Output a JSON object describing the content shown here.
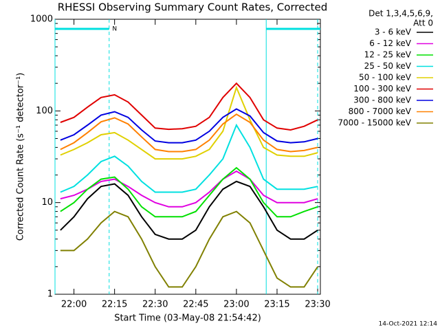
{
  "chart_data": {
    "type": "line",
    "title": "RHESSI Observing Summary Count Rates, Corrected",
    "x_label": "Start Time (03-May-08 21:54:42)",
    "y_label": "Corrected Count Rate (s⁻¹ detector⁻¹)",
    "footer": "14-Oct-2021 12:14",
    "legend_title": [
      "Det 1,3,4,5,6,9,",
      "Att 0"
    ],
    "log_y": true,
    "ylim": [
      1,
      1000
    ],
    "yticks": [
      1,
      10,
      100,
      1000
    ],
    "xlim": [
      "21:53",
      "23:31"
    ],
    "xticks": [
      "22:00",
      "22:15",
      "22:30",
      "22:45",
      "23:00",
      "23:15",
      "23:30"
    ],
    "night_bars": [
      [
        "21:53",
        "22:13"
      ],
      [
        "23:11",
        "23:31"
      ]
    ],
    "vlines": [
      {
        "x": "21:53",
        "style": "solid"
      },
      {
        "x": "22:13",
        "style": "dashed"
      },
      {
        "x": "23:11",
        "style": "solid"
      },
      {
        "x": "23:30",
        "style": "dashed"
      }
    ],
    "annotation": {
      "text": "N",
      "x": "22:13"
    },
    "x": [
      "21:55",
      "22:00",
      "22:05",
      "22:10",
      "22:15",
      "22:20",
      "22:25",
      "22:30",
      "22:35",
      "22:40",
      "22:45",
      "22:50",
      "22:55",
      "23:00",
      "23:05",
      "23:10",
      "23:15",
      "23:20",
      "23:25",
      "23:30"
    ],
    "series": [
      {
        "name": "3 - 6 keV",
        "color": "#000000",
        "values": [
          5,
          7,
          11,
          15,
          16,
          12,
          7,
          4.5,
          4,
          4,
          5,
          9,
          14,
          17,
          15,
          9,
          5,
          4,
          4,
          5
        ]
      },
      {
        "name": "6 - 12 keV",
        "color": "#e000e0",
        "values": [
          11,
          12,
          14,
          17,
          18,
          15,
          12,
          10,
          9,
          9,
          10,
          13,
          18,
          22,
          18,
          12,
          10,
          10,
          10,
          11
        ]
      },
      {
        "name": "12 - 25 keV",
        "color": "#00e000",
        "values": [
          8,
          10,
          14,
          18,
          19,
          14,
          9,
          7,
          7,
          7,
          8,
          12,
          18,
          24,
          18,
          10,
          7,
          7,
          8,
          9
        ]
      },
      {
        "name": "25 - 50 keV",
        "color": "#00e0e0",
        "values": [
          13,
          15,
          20,
          28,
          32,
          25,
          17,
          13,
          13,
          13,
          14,
          20,
          30,
          70,
          40,
          18,
          14,
          14,
          14,
          15
        ]
      },
      {
        "name": "50 - 100 keV",
        "color": "#e0d000",
        "values": [
          33,
          38,
          45,
          55,
          58,
          48,
          38,
          30,
          30,
          30,
          32,
          38,
          60,
          180,
          80,
          40,
          33,
          32,
          32,
          35
        ]
      },
      {
        "name": "100 - 300 keV",
        "color": "#e00000",
        "values": [
          75,
          85,
          110,
          140,
          150,
          125,
          90,
          65,
          63,
          64,
          68,
          85,
          140,
          200,
          140,
          80,
          65,
          62,
          68,
          80
        ]
      },
      {
        "name": "300 - 800 keV",
        "color": "#0000e0",
        "values": [
          48,
          55,
          70,
          90,
          98,
          85,
          62,
          47,
          45,
          45,
          48,
          60,
          85,
          105,
          88,
          58,
          47,
          45,
          46,
          50
        ]
      },
      {
        "name": "800 - 7000 keV",
        "color": "#ff8000",
        "values": [
          38,
          45,
          58,
          76,
          84,
          72,
          52,
          38,
          36,
          36,
          38,
          48,
          72,
          92,
          75,
          48,
          38,
          36,
          37,
          40
        ]
      },
      {
        "name": "7000 - 15000 keV",
        "color": "#808000",
        "values": [
          3,
          3,
          4,
          6,
          8,
          7,
          4,
          2,
          1.2,
          1.2,
          2,
          4,
          7,
          8,
          6,
          3,
          1.5,
          1.2,
          1.2,
          2
        ]
      }
    ]
  }
}
